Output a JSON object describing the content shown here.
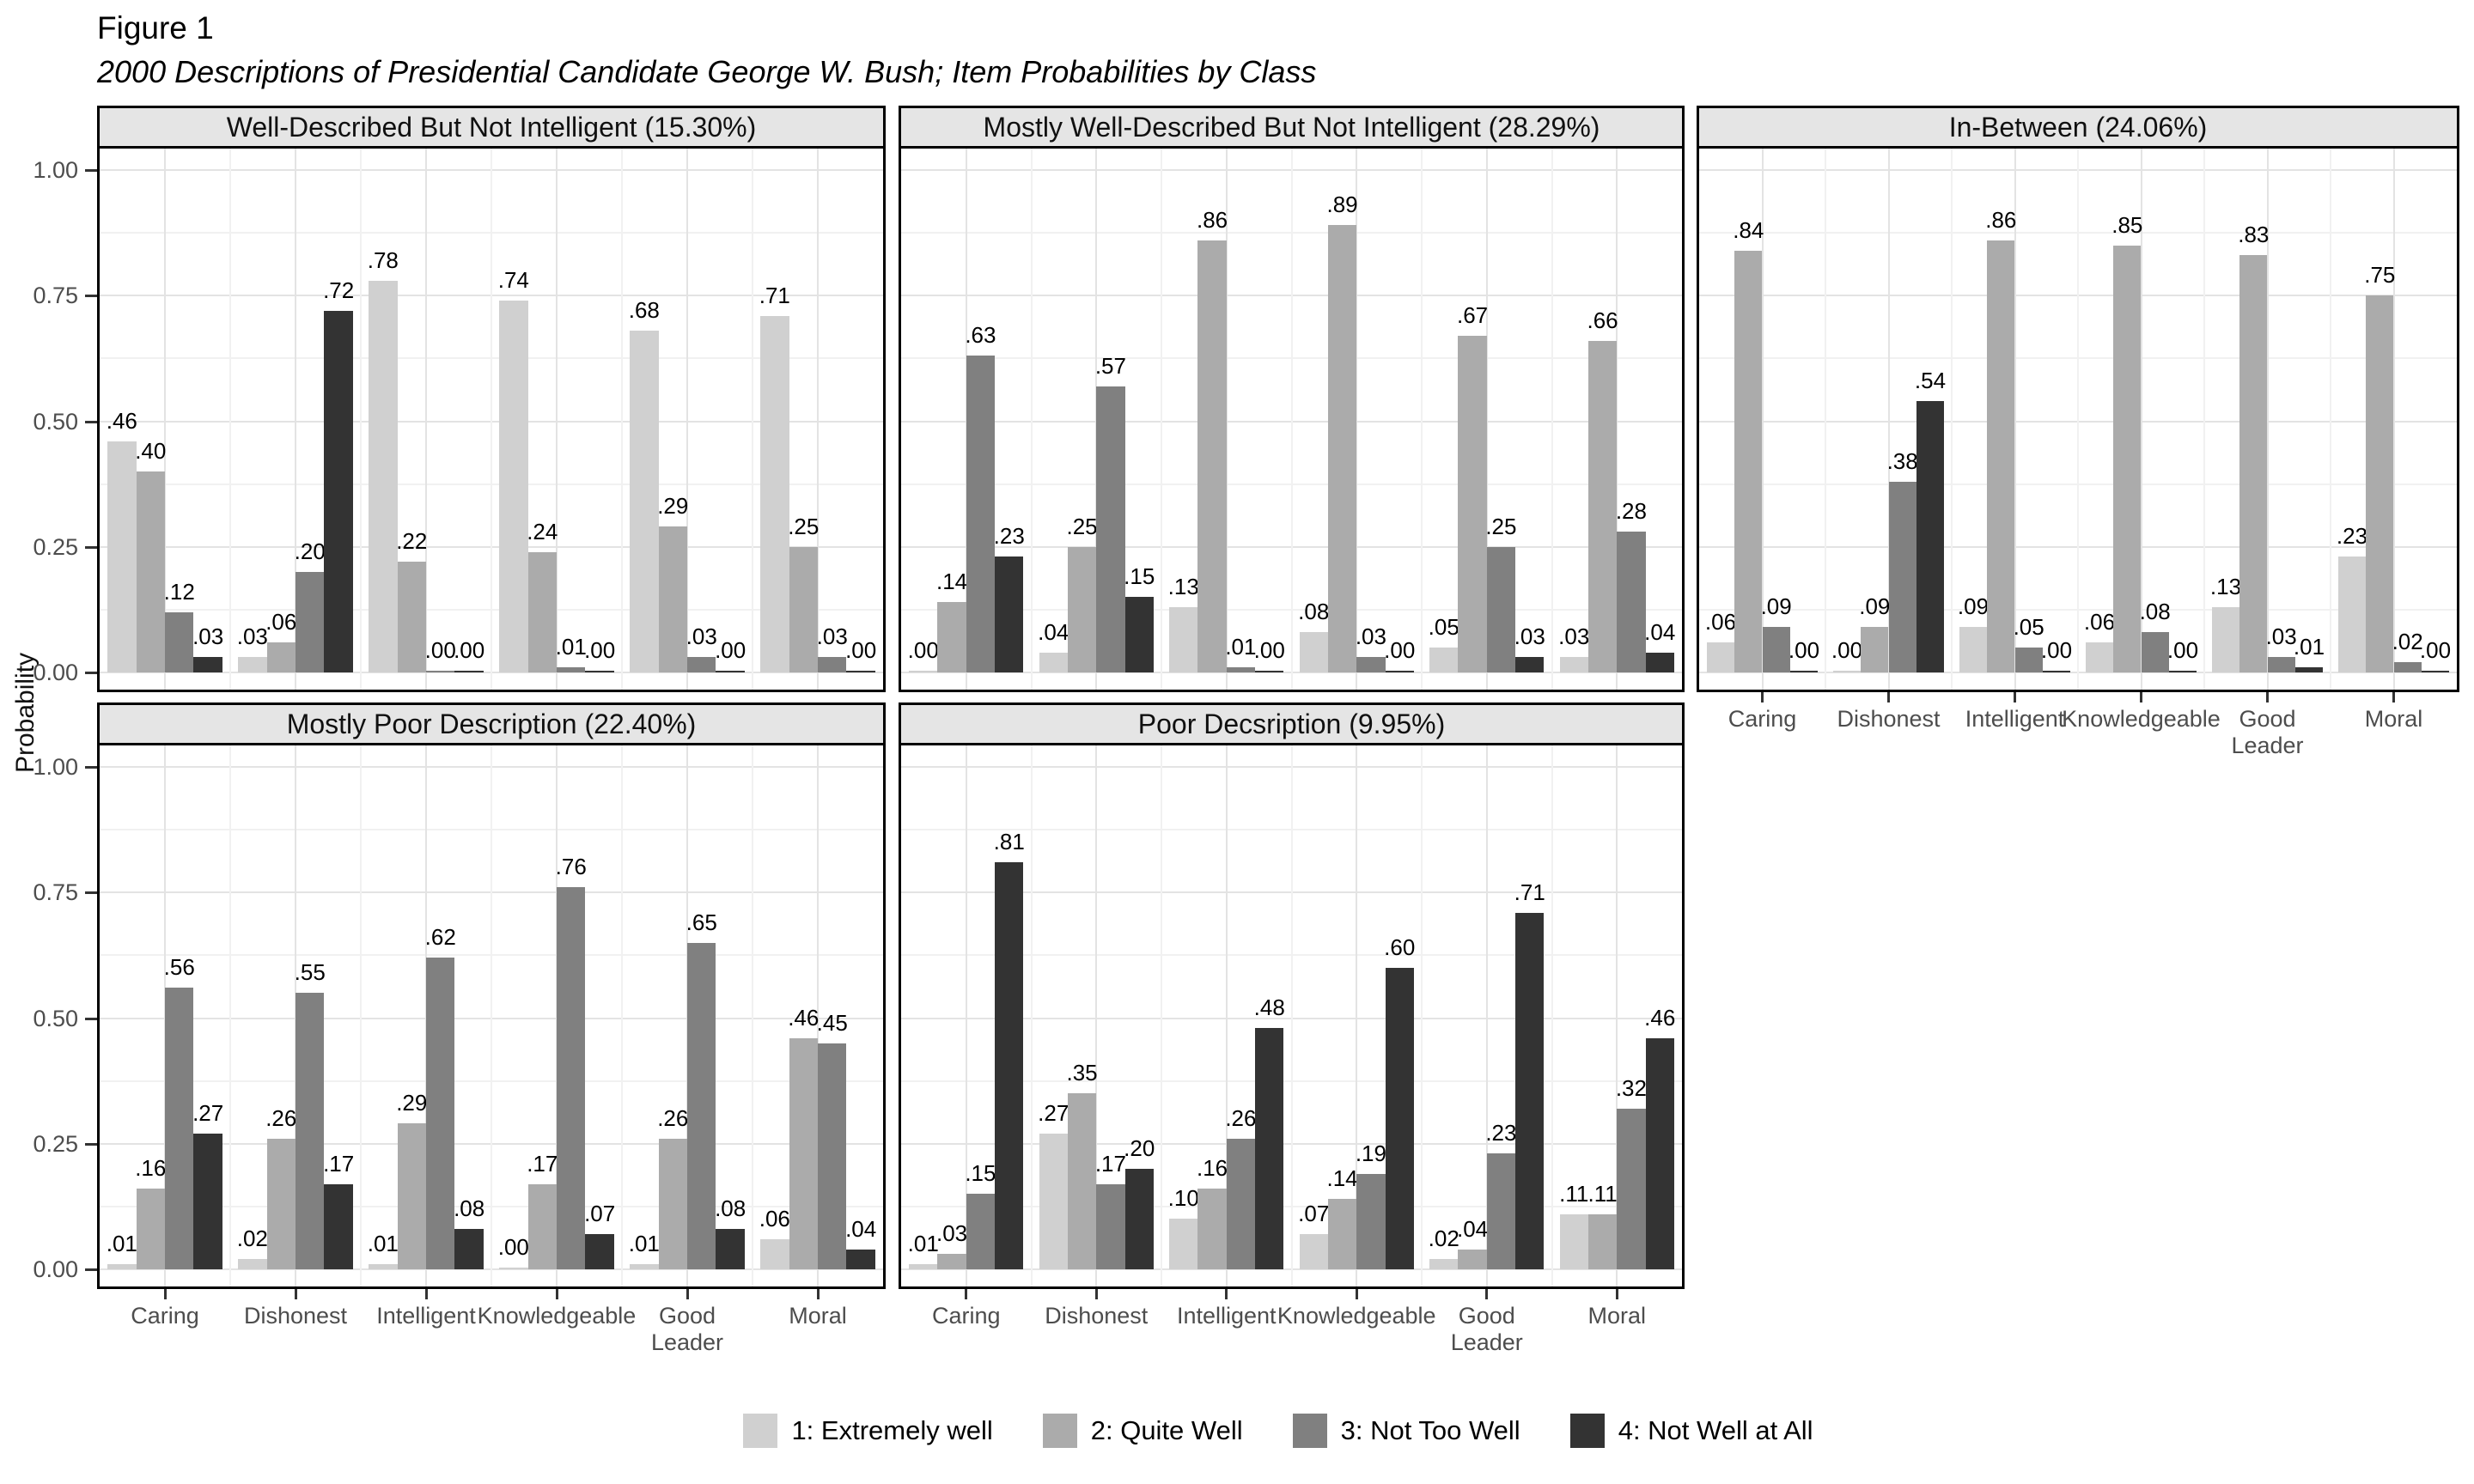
{
  "chart_data": {
    "type": "bar",
    "title": "Figure 1",
    "subtitle": "2000 Descriptions of Presidential Candidate George W. Bush; Item Probabilities by Class",
    "ylabel": "Probability",
    "ylim": [
      0,
      1
    ],
    "yticks": [
      0,
      0.25,
      0.5,
      0.75,
      1
    ],
    "grid": "on",
    "legend_position": "bottom",
    "categories": [
      "Caring",
      "Dishonest",
      "Intelligent",
      "Knowledgeable",
      "Good Leader",
      "Moral"
    ],
    "series_labels": [
      "1: Extremely well",
      "2: Quite Well",
      "3: Not Too Well",
      "4: Not Well at All"
    ],
    "colors": [
      "#d0d0d0",
      "#ababab",
      "#808080",
      "#333333"
    ],
    "facets": [
      {
        "title": "Well-Described But Not Intelligent (15.30%)",
        "values": [
          [
            0.46,
            0.4,
            0.12,
            0.03
          ],
          [
            0.03,
            0.06,
            0.2,
            0.72
          ],
          [
            0.78,
            0.22,
            0.0,
            0.0
          ],
          [
            0.74,
            0.24,
            0.01,
            0.0
          ],
          [
            0.68,
            0.29,
            0.03,
            0.0
          ],
          [
            0.71,
            0.25,
            0.03,
            0.0
          ]
        ]
      },
      {
        "title": "Mostly Well-Described But Not Intelligent (28.29%)",
        "values": [
          [
            0.0,
            0.14,
            0.63,
            0.23
          ],
          [
            0.04,
            0.25,
            0.57,
            0.15
          ],
          [
            0.13,
            0.86,
            0.01,
            0.0
          ],
          [
            0.08,
            0.89,
            0.03,
            0.0
          ],
          [
            0.05,
            0.67,
            0.25,
            0.03
          ],
          [
            0.03,
            0.66,
            0.28,
            0.04
          ]
        ]
      },
      {
        "title": "In-Between (24.06%)",
        "values": [
          [
            0.06,
            0.84,
            0.09,
            0.0
          ],
          [
            0.0,
            0.09,
            0.38,
            0.54
          ],
          [
            0.09,
            0.86,
            0.05,
            0.0
          ],
          [
            0.06,
            0.85,
            0.08,
            0.0
          ],
          [
            0.13,
            0.83,
            0.03,
            0.01
          ],
          [
            0.23,
            0.75,
            0.02,
            0.0
          ]
        ]
      },
      {
        "title": "Mostly Poor Description (22.40%)",
        "values": [
          [
            0.01,
            0.16,
            0.56,
            0.27
          ],
          [
            0.02,
            0.26,
            0.55,
            0.17
          ],
          [
            0.01,
            0.29,
            0.62,
            0.08
          ],
          [
            0.0,
            0.17,
            0.76,
            0.07
          ],
          [
            0.01,
            0.26,
            0.65,
            0.08
          ],
          [
            0.06,
            0.46,
            0.45,
            0.04
          ]
        ]
      },
      {
        "title": "Poor Decsription (9.95%)",
        "values": [
          [
            0.01,
            0.03,
            0.15,
            0.81
          ],
          [
            0.27,
            0.35,
            0.17,
            0.2
          ],
          [
            0.1,
            0.16,
            0.26,
            0.48
          ],
          [
            0.07,
            0.14,
            0.19,
            0.6
          ],
          [
            0.02,
            0.04,
            0.23,
            0.71
          ],
          [
            0.11,
            0.11,
            0.32,
            0.46
          ]
        ]
      }
    ]
  }
}
